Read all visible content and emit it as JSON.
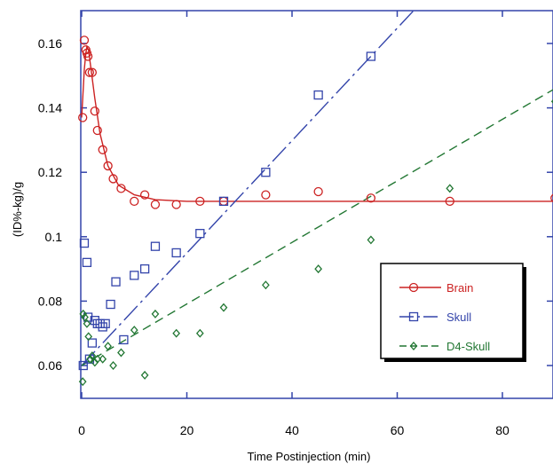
{
  "chart_data": {
    "type": "scatter",
    "title": "",
    "xlabel": "Time Postinjection (min)",
    "ylabel": "(ID%-kg)/g",
    "xlim": [
      -1,
      90
    ],
    "ylim": [
      0.05,
      0.17
    ],
    "xticks": [
      0,
      20,
      40,
      60,
      80
    ],
    "xtick_labels": [
      "0",
      "20",
      "40",
      "60",
      "80"
    ],
    "yticks": [
      0.06,
      0.08,
      0.1,
      0.12,
      0.14,
      0.16
    ],
    "ytick_labels": [
      "0.06",
      "0.08",
      "0.1",
      "0.12",
      "0.14",
      "0.16"
    ],
    "grid": false,
    "legend_position": "center-right",
    "series": [
      {
        "name": "Brain",
        "color": "#cc2222",
        "marker": "circle",
        "line_style": "solid",
        "points": [
          [
            0.2,
            0.137
          ],
          [
            0.5,
            0.161
          ],
          [
            0.8,
            0.158
          ],
          [
            1.0,
            0.157
          ],
          [
            1.2,
            0.156
          ],
          [
            1.5,
            0.151
          ],
          [
            2.0,
            0.151
          ],
          [
            2.5,
            0.139
          ],
          [
            3.0,
            0.133
          ],
          [
            4.0,
            0.127
          ],
          [
            5.0,
            0.122
          ],
          [
            6.0,
            0.118
          ],
          [
            7.5,
            0.115
          ],
          [
            10.0,
            0.111
          ],
          [
            12.0,
            0.113
          ],
          [
            14.0,
            0.11
          ],
          [
            18.0,
            0.11
          ],
          [
            22.5,
            0.111
          ],
          [
            27.0,
            0.111
          ],
          [
            35.0,
            0.113
          ],
          [
            45.0,
            0.114
          ],
          [
            55.0,
            0.112
          ],
          [
            70.0,
            0.111
          ],
          [
            90.0,
            0.112
          ]
        ],
        "fit": [
          [
            0.0,
            0.137
          ],
          [
            0.5,
            0.152
          ],
          [
            0.8,
            0.157
          ],
          [
            1.0,
            0.159
          ],
          [
            1.3,
            0.158
          ],
          [
            1.7,
            0.153
          ],
          [
            2.5,
            0.143
          ],
          [
            3.5,
            0.132
          ],
          [
            5.0,
            0.122
          ],
          [
            7.0,
            0.116
          ],
          [
            10.0,
            0.113
          ],
          [
            14.0,
            0.1115
          ],
          [
            20.0,
            0.111
          ],
          [
            90.0,
            0.111
          ]
        ]
      },
      {
        "name": "Skull",
        "color": "#3344aa",
        "marker": "square",
        "line_style": "dash-dot",
        "points": [
          [
            0.3,
            0.06
          ],
          [
            0.5,
            0.098
          ],
          [
            1.0,
            0.092
          ],
          [
            1.2,
            0.075
          ],
          [
            1.5,
            0.062
          ],
          [
            2.0,
            0.067
          ],
          [
            2.5,
            0.074
          ],
          [
            3.0,
            0.073
          ],
          [
            3.5,
            0.073
          ],
          [
            4.0,
            0.072
          ],
          [
            4.5,
            0.073
          ],
          [
            5.5,
            0.079
          ],
          [
            6.5,
            0.086
          ],
          [
            8.0,
            0.068
          ],
          [
            10.0,
            0.088
          ],
          [
            12.0,
            0.09
          ],
          [
            14.0,
            0.097
          ],
          [
            18.0,
            0.095
          ],
          [
            22.5,
            0.101
          ],
          [
            27.0,
            0.111
          ],
          [
            35.0,
            0.12
          ],
          [
            45.0,
            0.144
          ],
          [
            55.0,
            0.156
          ]
        ],
        "fit": [
          [
            0.0,
            0.06
          ],
          [
            63.0,
            0.17
          ]
        ]
      },
      {
        "name": "D4-Skull",
        "color": "#227733",
        "marker": "diamond",
        "line_style": "dashed",
        "points": [
          [
            0.2,
            0.055
          ],
          [
            0.3,
            0.076
          ],
          [
            0.6,
            0.075
          ],
          [
            1.0,
            0.073
          ],
          [
            1.3,
            0.069
          ],
          [
            1.6,
            0.062
          ],
          [
            2.0,
            0.063
          ],
          [
            2.5,
            0.061
          ],
          [
            3.0,
            0.062
          ],
          [
            4.0,
            0.062
          ],
          [
            5.0,
            0.066
          ],
          [
            6.0,
            0.06
          ],
          [
            7.5,
            0.064
          ],
          [
            10.0,
            0.071
          ],
          [
            12.0,
            0.057
          ],
          [
            14.0,
            0.076
          ],
          [
            18.0,
            0.07
          ],
          [
            22.5,
            0.07
          ],
          [
            27.0,
            0.078
          ],
          [
            35.0,
            0.085
          ],
          [
            45.0,
            0.09
          ],
          [
            55.0,
            0.099
          ],
          [
            70.0,
            0.115
          ],
          [
            90.0,
            0.142
          ]
        ],
        "fit": [
          [
            0.0,
            0.06
          ],
          [
            90.0,
            0.146
          ]
        ]
      }
    ]
  }
}
